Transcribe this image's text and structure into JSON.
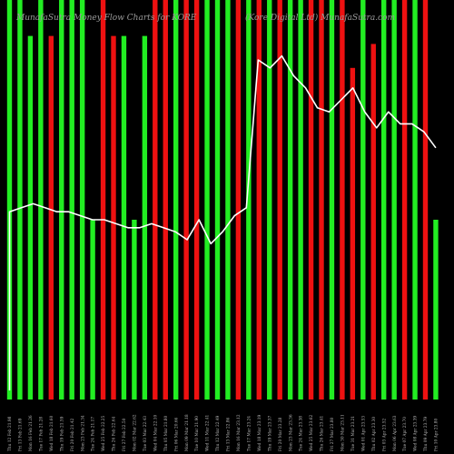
{
  "chart_data": {
    "type": "bar",
    "title": "MunafaSutra Money Flow Charts for KORE",
    "subtitle": "(Kore Digital Ltd) MunafaSutra.com",
    "colors": {
      "up": "#22ee22",
      "down": "#ee1111",
      "line": "#ffffff",
      "background": "#000000"
    },
    "bars": [
      {
        "date": "Thu 12 Feb",
        "price": "21.98",
        "dir": "up",
        "value": 1.0
      },
      {
        "date": "Fri 13 Feb",
        "price": "21.69",
        "dir": "up",
        "value": 1.0
      },
      {
        "date": "Mon 16 Feb",
        "price": "21.26",
        "dir": "up",
        "value": 0.91
      },
      {
        "date": "Tue 17 Feb",
        "price": "21.28",
        "dir": "up",
        "value": 1.0
      },
      {
        "date": "Wed 18 Feb",
        "price": "21.60",
        "dir": "down",
        "value": 0.91
      },
      {
        "date": "Thu 19 Feb",
        "price": "21.59",
        "dir": "up",
        "value": 1.0
      },
      {
        "date": "Fri 20 Feb",
        "price": "21.42",
        "dir": "up",
        "value": 1.0
      },
      {
        "date": "Mon 23 Feb",
        "price": "21.34",
        "dir": "up",
        "value": 1.0
      },
      {
        "date": "Tue 24 Feb",
        "price": "21.17",
        "dir": "up",
        "value": 0.45
      },
      {
        "date": "Wed 25 Feb",
        "price": "22.25",
        "dir": "down",
        "value": 1.0
      },
      {
        "date": "Thu 26 Feb",
        "price": "22.64",
        "dir": "down",
        "value": 0.91
      },
      {
        "date": "Fri 27 Feb",
        "price": "22.50",
        "dir": "up",
        "value": 0.91
      },
      {
        "date": "Mon 02 Mar",
        "price": "22.62",
        "dir": "up",
        "value": 0.45
      },
      {
        "date": "Tue 03 Mar",
        "price": "22.43",
        "dir": "up",
        "value": 0.91
      },
      {
        "date": "Wed 04 Mar",
        "price": "22.10",
        "dir": "down",
        "value": 1.0
      },
      {
        "date": "Thu 05 Mar",
        "price": "21.80",
        "dir": "down",
        "value": 1.0
      },
      {
        "date": "Fri 06 Mar",
        "price": "20.66",
        "dir": "up",
        "value": 1.0
      },
      {
        "date": "Mon 09 Mar",
        "price": "21.18",
        "dir": "down",
        "value": 1.0
      },
      {
        "date": "Tue 10 Mar",
        "price": "21.90",
        "dir": "down",
        "value": 1.0
      },
      {
        "date": "Wed 11 Mar",
        "price": "22.41",
        "dir": "up",
        "value": 1.0
      },
      {
        "date": "Thu 12 Mar",
        "price": "22.49",
        "dir": "up",
        "value": 1.0
      },
      {
        "date": "Fri 13 Mar",
        "price": "22.86",
        "dir": "up",
        "value": 1.0
      },
      {
        "date": "Mon 16 Mar",
        "price": "23.12",
        "dir": "down",
        "value": 1.0
      },
      {
        "date": "Tue 17 Mar",
        "price": "23.24",
        "dir": "up",
        "value": 1.0
      },
      {
        "date": "Wed 18 Mar",
        "price": "23.19",
        "dir": "down",
        "value": 1.0
      },
      {
        "date": "Thu 19 Mar",
        "price": "23.37",
        "dir": "up",
        "value": 1.0
      },
      {
        "date": "Fri 20 Mar",
        "price": "23.28",
        "dir": "down",
        "value": 1.0
      },
      {
        "date": "Mon 23 Mar",
        "price": "23.36",
        "dir": "up",
        "value": 1.0
      },
      {
        "date": "Tue 24 Mar",
        "price": "23.38",
        "dir": "up",
        "value": 1.0
      },
      {
        "date": "Wed 25 Mar",
        "price": "23.62",
        "dir": "down",
        "value": 1.0
      },
      {
        "date": "Thu 26 Mar",
        "price": "23.41",
        "dir": "down",
        "value": 1.0
      },
      {
        "date": "Fri 27 Mar",
        "price": "23.80",
        "dir": "up",
        "value": 1.0
      },
      {
        "date": "Mon 30 Mar",
        "price": "23.11",
        "dir": "down",
        "value": 1.0
      },
      {
        "date": "Tue 31 Mar",
        "price": "23.21",
        "dir": "down",
        "value": 0.83
      },
      {
        "date": "Wed 01 Apr",
        "price": "23.53",
        "dir": "up",
        "value": 1.0
      },
      {
        "date": "Thu 02 Apr",
        "price": "23.30",
        "dir": "down",
        "value": 0.89
      },
      {
        "date": "Fri 03 Apr",
        "price": "23.52",
        "dir": "up",
        "value": 1.0
      },
      {
        "date": "Mon 06 Apr",
        "price": "23.63",
        "dir": "up",
        "value": 1.0
      },
      {
        "date": "Tue 07 Apr",
        "price": "23.70",
        "dir": "down",
        "value": 1.0
      },
      {
        "date": "Wed 08 Apr",
        "price": "23.39",
        "dir": "up",
        "value": 1.0
      },
      {
        "date": "Thu 09 Apr",
        "price": "23.79",
        "dir": "down",
        "value": 1.0
      },
      {
        "date": "Fri 10 Apr",
        "price": "23.80",
        "dir": "up",
        "value": 0.45
      }
    ],
    "line": [
      0.47,
      0.48,
      0.49,
      0.48,
      0.47,
      0.47,
      0.46,
      0.45,
      0.45,
      0.44,
      0.43,
      0.43,
      0.44,
      0.43,
      0.42,
      0.4,
      0.45,
      0.39,
      0.42,
      0.46,
      0.48,
      0.85,
      0.83,
      0.86,
      0.81,
      0.78,
      0.73,
      0.72,
      0.75,
      0.78,
      0.72,
      0.68,
      0.72,
      0.69,
      0.69,
      0.67,
      0.63
    ],
    "line_range": [
      0,
      1
    ]
  }
}
